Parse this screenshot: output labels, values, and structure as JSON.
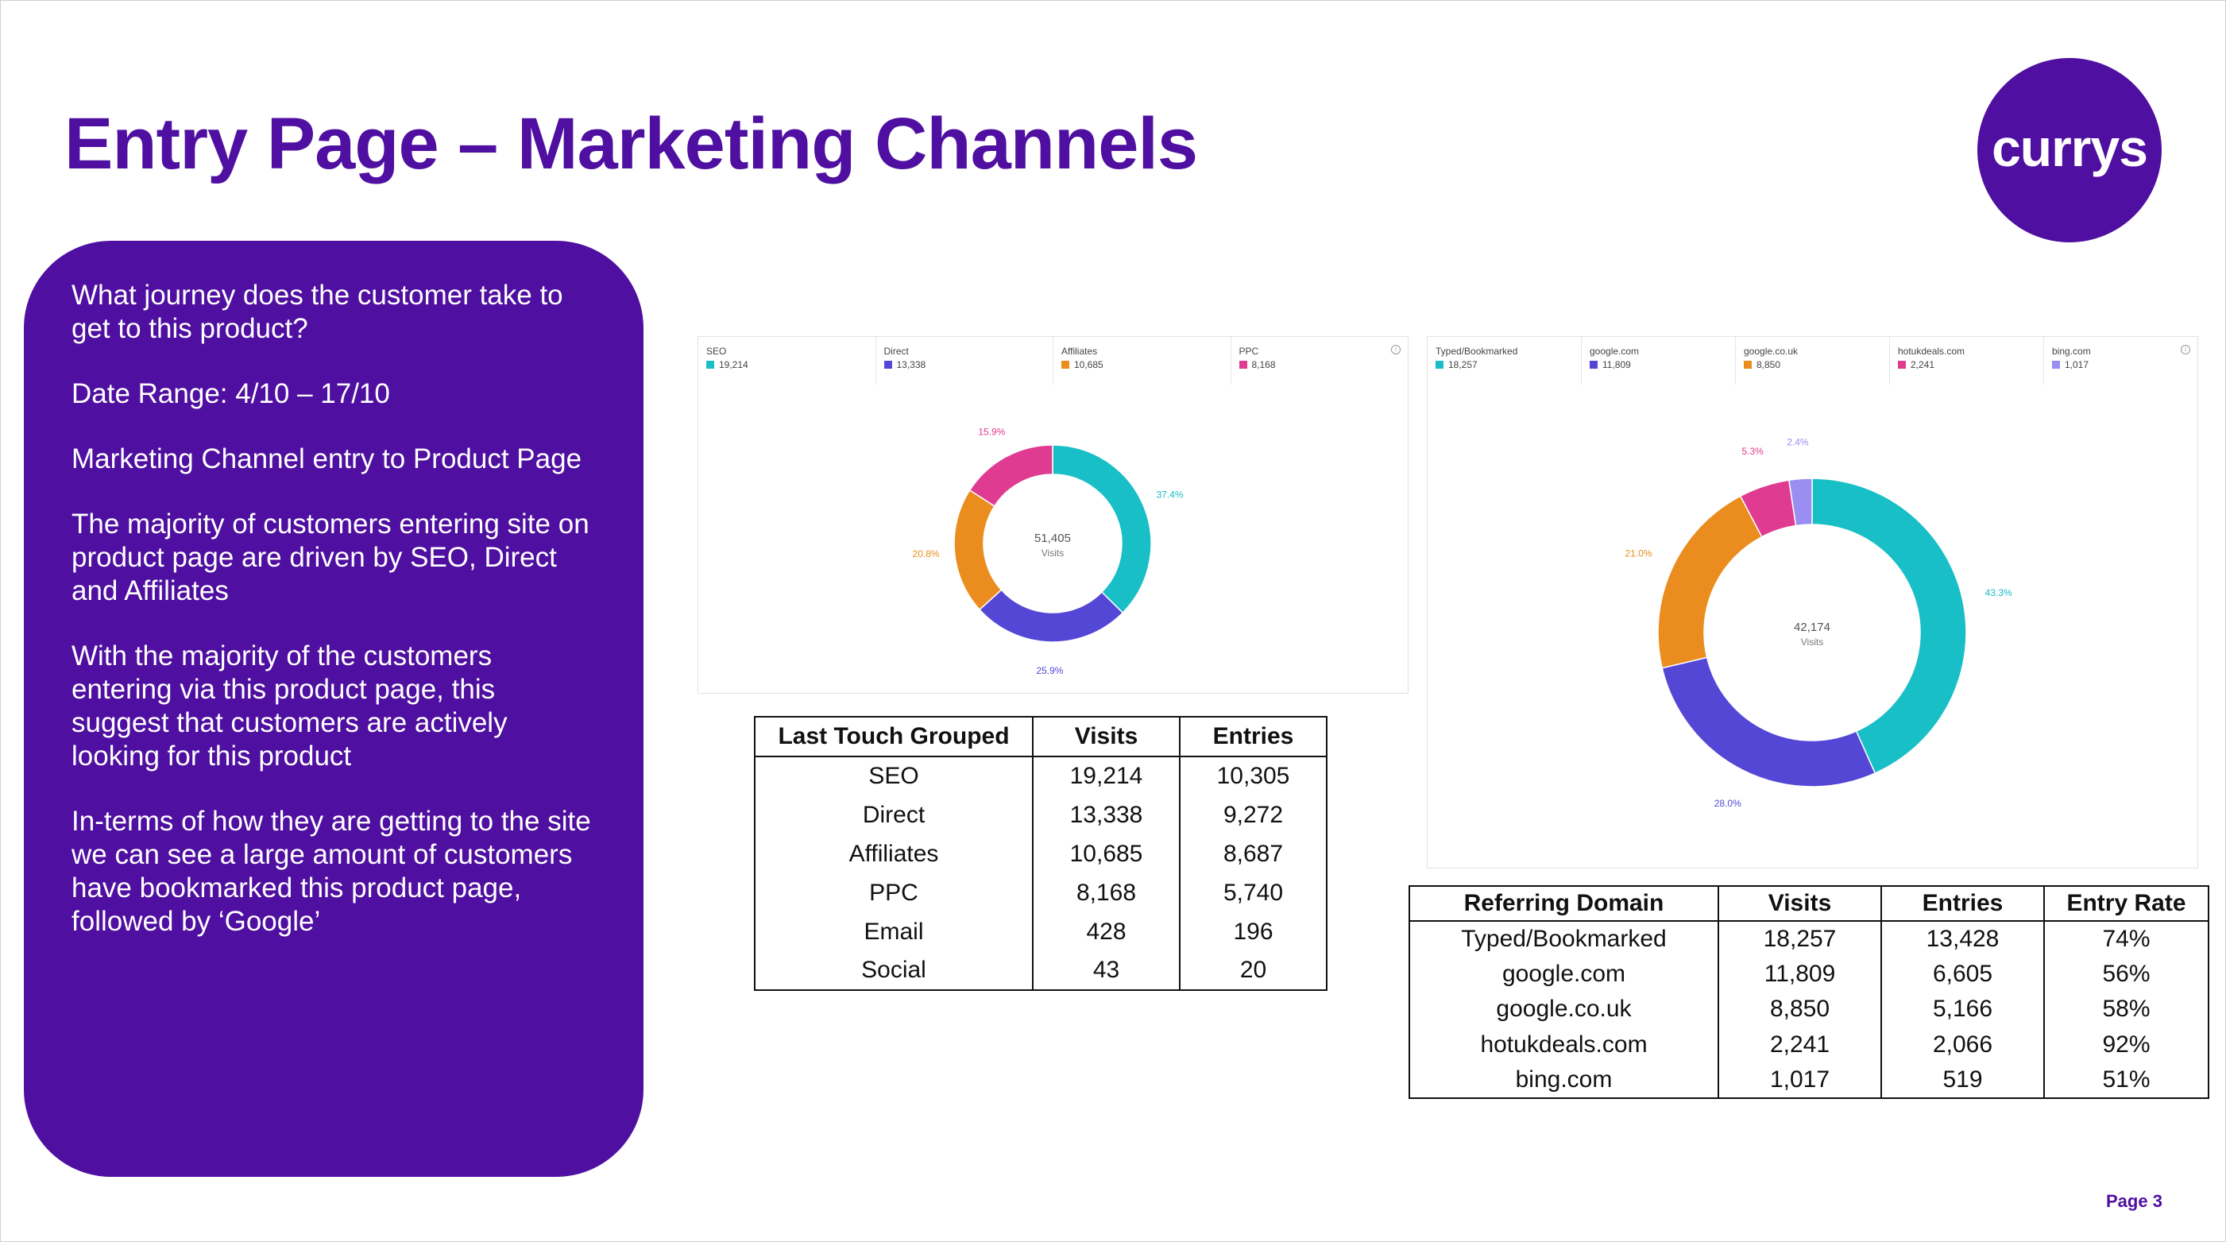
{
  "slide": {
    "title": "Entry Page – Marketing Channels",
    "logo_text": "currys",
    "page_label": "Page 3",
    "brand_color": "#4f0fa0"
  },
  "side_panel": {
    "paragraphs": [
      "What journey does the customer take to get to this product?",
      "Date Range: 4/10 – 17/10",
      "Marketing Channel entry to Product Page",
      "The majority of customers entering site on product page are driven by SEO, Direct and Affiliates",
      "With the majority of the customers entering via this product page, this suggest that customers are actively looking for this product",
      "In-terms of how they are getting to the site we can see a large amount of customers have bookmarked this product page, followed by ‘Google’"
    ]
  },
  "chart_data": [
    {
      "type": "pie",
      "donut": true,
      "center_value": "51,405",
      "center_label": "Visits",
      "legend": [
        {
          "name": "SEO",
          "value": "19,214",
          "color": "#19bfc6"
        },
        {
          "name": "Direct",
          "value": "13,338",
          "color": "#5447d6"
        },
        {
          "name": "Affiliates",
          "value": "10,685",
          "color": "#ea8d1e"
        },
        {
          "name": "PPC",
          "value": "8,168",
          "color": "#df3b90"
        }
      ],
      "slices": [
        {
          "name": "SEO",
          "value": 37.4,
          "label": "37.4%",
          "color": "#19bfc6"
        },
        {
          "name": "Direct",
          "value": 25.9,
          "label": "25.9%",
          "color": "#5447d6"
        },
        {
          "name": "Affiliates",
          "value": 20.8,
          "label": "20.8%",
          "color": "#ea8d1e"
        },
        {
          "name": "PPC",
          "value": 15.9,
          "label": "15.9%",
          "color": "#df3b90"
        }
      ]
    },
    {
      "type": "pie",
      "donut": true,
      "center_value": "42,174",
      "center_label": "Visits",
      "legend": [
        {
          "name": "Typed/Bookmarked",
          "value": "18,257",
          "color": "#19bfc6"
        },
        {
          "name": "google.com",
          "value": "11,809",
          "color": "#5447d6"
        },
        {
          "name": "google.co.uk",
          "value": "8,850",
          "color": "#ea8d1e"
        },
        {
          "name": "hotukdeals.com",
          "value": "2,241",
          "color": "#df3b90"
        },
        {
          "name": "bing.com",
          "value": "1,017",
          "color": "#9a8ef2"
        }
      ],
      "slices": [
        {
          "name": "Typed/Bookmarked",
          "value": 43.3,
          "label": "43.3%",
          "color": "#19bfc6"
        },
        {
          "name": "google.com",
          "value": 28.0,
          "label": "28.0%",
          "color": "#5447d6"
        },
        {
          "name": "google.co.uk",
          "value": 21.0,
          "label": "21.0%",
          "color": "#ea8d1e"
        },
        {
          "name": "hotukdeals.com",
          "value": 5.3,
          "label": "5.3%",
          "color": "#df3b90"
        },
        {
          "name": "bing.com",
          "value": 2.4,
          "label": "2.4%",
          "color": "#9a8ef2"
        }
      ]
    },
    {
      "type": "table",
      "columns": [
        "Last Touch Grouped",
        "Visits",
        "Entries"
      ],
      "rows": [
        [
          "SEO",
          "19,214",
          "10,305"
        ],
        [
          "Direct",
          "13,338",
          "9,272"
        ],
        [
          "Affiliates",
          "10,685",
          "8,687"
        ],
        [
          "PPC",
          "8,168",
          "5,740"
        ],
        [
          "Email",
          "428",
          "196"
        ],
        [
          "Social",
          "43",
          "20"
        ]
      ]
    },
    {
      "type": "table",
      "columns": [
        "Referring Domain",
        "Visits",
        "Entries",
        "Entry Rate"
      ],
      "rows": [
        [
          "Typed/Bookmarked",
          "18,257",
          "13,428",
          "74%"
        ],
        [
          "google.com",
          "11,809",
          "6,605",
          "56%"
        ],
        [
          "google.co.uk",
          "8,850",
          "5,166",
          "58%"
        ],
        [
          "hotukdeals.com",
          "2,241",
          "2,066",
          "92%"
        ],
        [
          "bing.com",
          "1,017",
          "519",
          "51%"
        ]
      ]
    }
  ]
}
